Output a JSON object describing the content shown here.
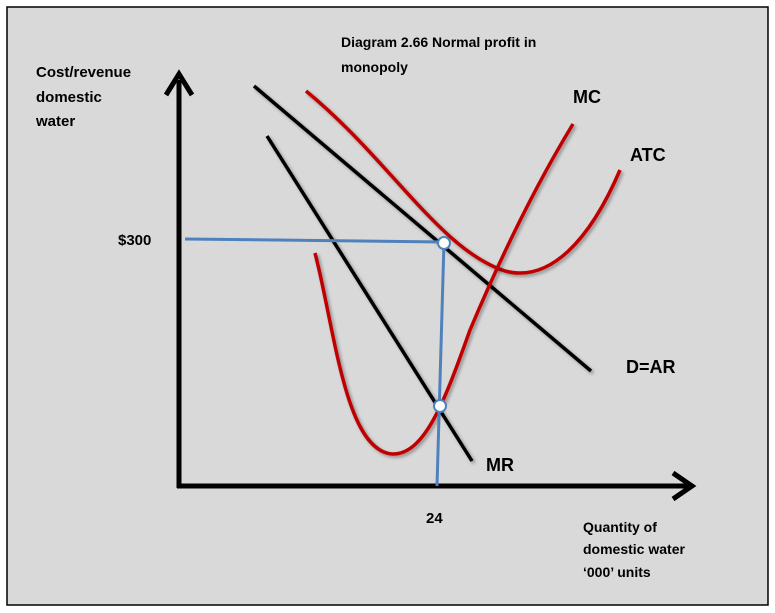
{
  "title": [
    "Diagram 2.66 Normal profit in",
    "monopoly"
  ],
  "y_axis_label": [
    "Cost/revenue",
    "domestic",
    "water"
  ],
  "x_axis_label": [
    "Quantity of",
    "domestic water",
    "‘000’ units"
  ],
  "price_label": "$300",
  "quantity_label": "24",
  "curves": {
    "mc": "MC",
    "atc": "ATC",
    "demand": "D=AR",
    "mr": "MR"
  },
  "colors": {
    "background": "#d9d9d9",
    "cost_curves": "#c00000",
    "revenue_curves": "#000000",
    "guide_lines": "#4f81bd"
  }
}
